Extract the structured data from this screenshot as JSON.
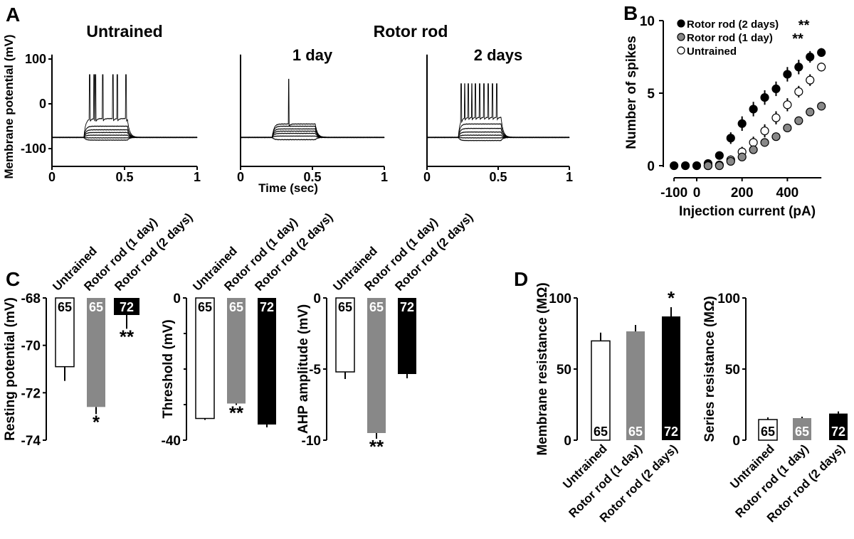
{
  "panel_labels": [
    "A",
    "B",
    "C",
    "D"
  ],
  "panel_a": {
    "group_header": "Rotor rod",
    "shared_xlabel": "Time (sec)"
  },
  "colors": {
    "untrained": "#ffffff",
    "rotor_1day": "#888888",
    "rotor_2days": "#000000",
    "axis": "#000000"
  },
  "chart_data": [
    {
      "panel": "A",
      "type": "line",
      "title": "Untrained",
      "ylabel": "Membrane potential (mV)",
      "xlabel": "",
      "xlim": [
        0,
        1
      ],
      "ylim": [
        -140,
        110
      ],
      "xticks": [
        "0",
        "0.5",
        "1"
      ],
      "yticks": [
        "100",
        "0",
        "-100"
      ],
      "baseline_mV": -75,
      "step_window_s": [
        0.22,
        0.52
      ],
      "step_levels_mV": [
        -81,
        -76,
        -70,
        -64,
        -58,
        -50,
        -33
      ],
      "spike_times_s": [
        0.26,
        0.29,
        0.3,
        0.35,
        0.42,
        0.45,
        0.51
      ],
      "spike_peak_mV": 65
    },
    {
      "panel": "A",
      "type": "line",
      "title": "1 day",
      "ylabel": "",
      "xlabel": "Time (sec)",
      "xlim": [
        0,
        1
      ],
      "ylim": [
        -140,
        110
      ],
      "xticks": [
        "0",
        "0.5",
        "1"
      ],
      "yticks": [],
      "baseline_mV": -75,
      "step_window_s": [
        0.22,
        0.52
      ],
      "step_levels_mV": [
        -80,
        -72,
        -66,
        -61,
        -56,
        -50,
        -45
      ],
      "spike_times_s": [
        0.335
      ],
      "spike_peak_mV": 55
    },
    {
      "panel": "A",
      "type": "line",
      "title": "2 days",
      "ylabel": "",
      "xlabel": "",
      "xlim": [
        0,
        1
      ],
      "ylim": [
        -140,
        110
      ],
      "xticks": [
        "0",
        "0.5",
        "1"
      ],
      "yticks": [],
      "baseline_mV": -75,
      "step_window_s": [
        0.22,
        0.52
      ],
      "step_levels_mV": [
        -82,
        -76,
        -70,
        -63,
        -55,
        -45,
        -30
      ],
      "spike_times_s": [
        0.24,
        0.265,
        0.29,
        0.315,
        0.34,
        0.37,
        0.4,
        0.43,
        0.46,
        0.49
      ],
      "spike_peak_mV": 45
    },
    {
      "panel": "B",
      "type": "scatter",
      "xlabel": "Injection current (pA)",
      "ylabel": "Number of spikes",
      "xlim": [
        -100,
        550
      ],
      "ylim": [
        0,
        10
      ],
      "xticks": [
        "-100",
        "0",
        "200",
        "400"
      ],
      "yticks": [
        "0",
        "5",
        "10"
      ],
      "legend": "top-left",
      "x": [
        -100,
        -50,
        0,
        50,
        100,
        150,
        200,
        250,
        300,
        350,
        400,
        450,
        500,
        550
      ],
      "series": [
        {
          "name": "Rotor rod (2 days)",
          "significance": "**",
          "fill": "#000000",
          "values": [
            0,
            0,
            0,
            0.15,
            0.7,
            1.9,
            2.9,
            3.9,
            4.7,
            5.3,
            6.3,
            6.8,
            7.5,
            7.8
          ],
          "error": [
            0,
            0,
            0,
            0.1,
            0.2,
            0.4,
            0.5,
            0.5,
            0.5,
            0.5,
            0.5,
            0.5,
            0.4,
            0.3
          ]
        },
        {
          "name": "Rotor rod (1 day)",
          "significance": "**",
          "fill": "#888888",
          "values": [
            null,
            null,
            null,
            0,
            0,
            0.3,
            0.6,
            1.1,
            1.6,
            2.0,
            2.6,
            3.1,
            3.7,
            4.1
          ],
          "error": [
            null,
            null,
            null,
            0.05,
            0.05,
            0.1,
            0.15,
            0.2,
            0.2,
            0.2,
            0.2,
            0.2,
            0.2,
            0.2
          ]
        },
        {
          "name": "Untrained",
          "significance": "",
          "fill": "#ffffff",
          "values": [
            null,
            null,
            null,
            0,
            0.05,
            0.4,
            0.95,
            1.6,
            2.4,
            3.3,
            4.2,
            5.1,
            5.9,
            6.8
          ],
          "error": [
            null,
            null,
            null,
            0.05,
            0.1,
            0.3,
            0.35,
            0.4,
            0.45,
            0.45,
            0.45,
            0.4,
            0.4,
            0.3
          ]
        }
      ]
    },
    {
      "panel": "C",
      "type": "bar",
      "ylabel": "Resting potential (mV)",
      "ylim": [
        -74,
        -68
      ],
      "yticks": [
        "-68",
        "-70",
        "-72",
        "-74"
      ],
      "categories": [
        "Untrained",
        "Rotor rod (1 day)",
        "Rotor rod (2 days)"
      ],
      "values": [
        -70.9,
        -72.6,
        -68.7
      ],
      "error": [
        0.6,
        0.3,
        0.6
      ],
      "n": [
        "65",
        "65",
        "72"
      ],
      "significance": [
        "",
        "*",
        "**"
      ]
    },
    {
      "panel": "C",
      "type": "bar",
      "ylabel": "Threshold (mV)",
      "ylim": [
        -40,
        0
      ],
      "yticks": [
        "0",
        "-40"
      ],
      "categories": [
        "Untrained",
        "Rotor rod (1 day)",
        "Rotor rod (2 days)"
      ],
      "values": [
        -33.9,
        -29.7,
        -35.6
      ],
      "error": [
        0.4,
        0.4,
        0.8
      ],
      "n": [
        "65",
        "65",
        "72"
      ],
      "significance": [
        "",
        "**",
        ""
      ]
    },
    {
      "panel": "C",
      "type": "bar",
      "ylabel": "AHP amplitude (mV)",
      "ylim": [
        -10,
        0
      ],
      "yticks": [
        "0",
        "-5",
        "-10"
      ],
      "categories": [
        "Untrained",
        "Rotor rod (1 day)",
        "Rotor rod (2 days)"
      ],
      "values": [
        -5.2,
        -9.5,
        -5.35
      ],
      "error": [
        0.5,
        0.4,
        0.3
      ],
      "n": [
        "65",
        "65",
        "72"
      ],
      "significance": [
        "",
        "**",
        ""
      ]
    },
    {
      "panel": "D",
      "type": "bar",
      "ylabel": "Membrane resistance (MΩ)",
      "ylim": [
        0,
        100
      ],
      "yticks": [
        "0",
        "50",
        "100"
      ],
      "categories": [
        "Untrained",
        "Rotor rod (1 day)",
        "Rotor rod (2 days)"
      ],
      "values": [
        69.8,
        76.5,
        87
      ],
      "error": [
        5.8,
        4.5,
        6.5
      ],
      "n": [
        "65",
        "65",
        "72"
      ],
      "significance": [
        "",
        "",
        "*"
      ]
    },
    {
      "panel": "D",
      "type": "bar",
      "ylabel": "Series resistance (MΩ)",
      "ylim": [
        0,
        100
      ],
      "yticks": [
        "0",
        "50",
        "100"
      ],
      "categories": [
        "Untrained",
        "Rotor rod (1 day)",
        "Rotor rod (2 days)"
      ],
      "values": [
        14.5,
        15.5,
        18.7
      ],
      "error": [
        1.5,
        1.0,
        1.5
      ],
      "n": [
        "65",
        "65",
        "72"
      ],
      "significance": [
        "",
        "",
        ""
      ]
    }
  ]
}
